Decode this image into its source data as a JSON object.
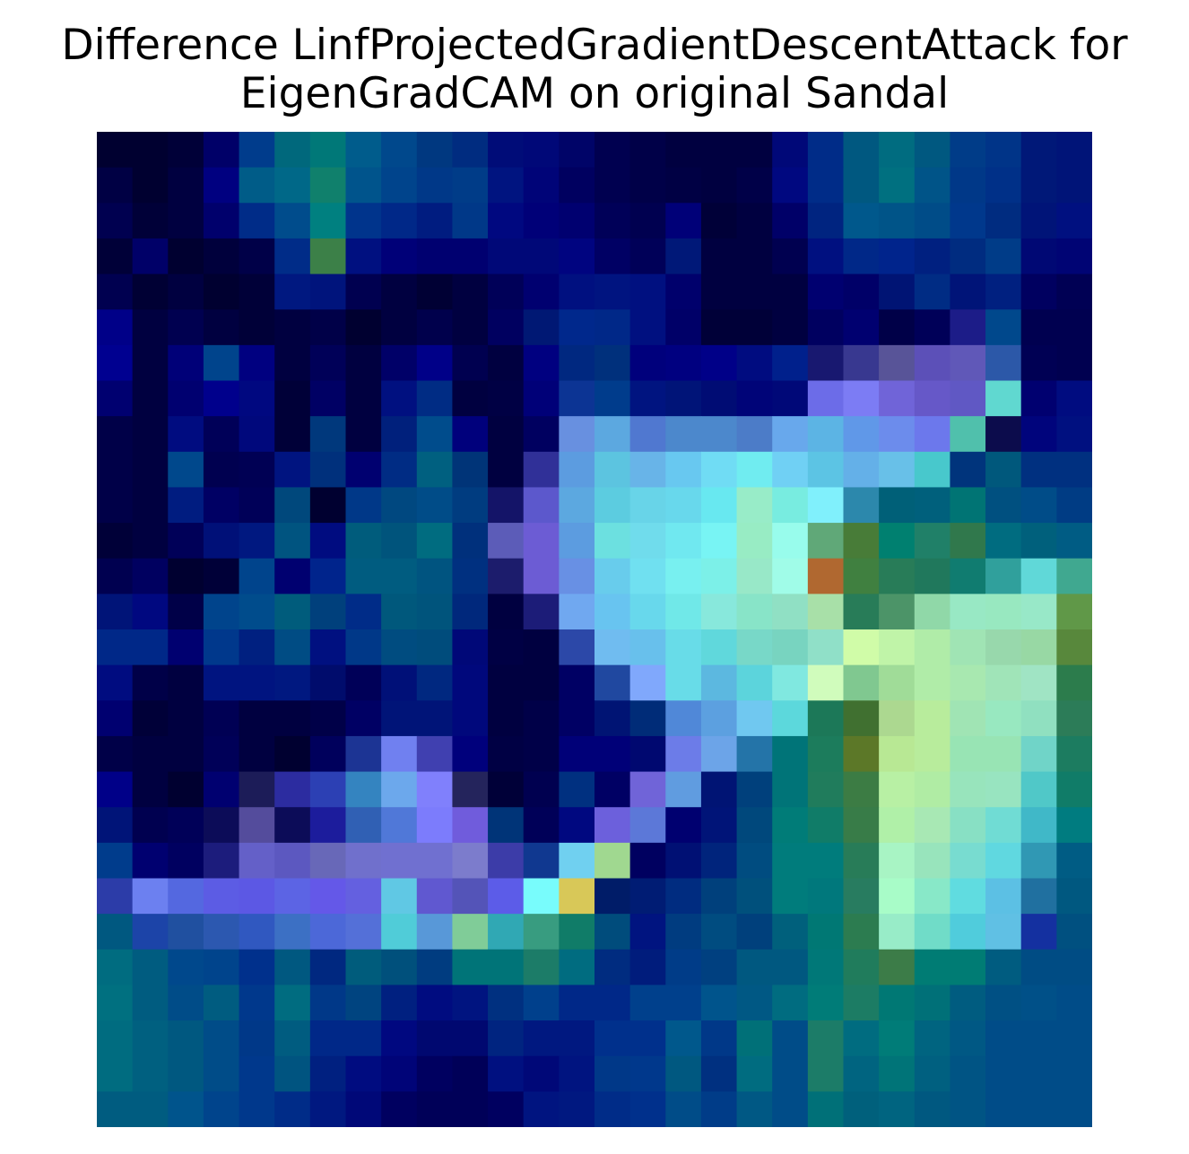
{
  "chart_data": {
    "type": "heatmap",
    "title_lines": [
      "Difference LinfProjectedGradientDescentAttack for",
      "EigenGradCAM on original Sandal"
    ],
    "rows": 28,
    "cols": 28,
    "axes": "off",
    "cells": [
      [
        "#000030",
        "#000030",
        "#000038",
        "#000068",
        "#003C8C",
        "#00687C",
        "#007878",
        "#005C8C",
        "#00488C",
        "#003880",
        "#002C80",
        "#000C78",
        "#000878",
        "#000468",
        "#000050",
        "#000048",
        "#000040",
        "#000040",
        "#000040",
        "#000878",
        "#002C88",
        "#005880",
        "#006C80",
        "#005880",
        "#003C88",
        "#003488",
        "#001878",
        "#001478"
      ],
      [
        "#000044",
        "#000030",
        "#000040",
        "#000080",
        "#005C88",
        "#006888",
        "#10806C",
        "#00548C",
        "#00448C",
        "#003888",
        "#003C88",
        "#001480",
        "#000478",
        "#000060",
        "#000050",
        "#000048",
        "#000044",
        "#000040",
        "#000048",
        "#000880",
        "#002C88",
        "#005880",
        "#007080",
        "#005488",
        "#003888",
        "#003088",
        "#001878",
        "#001478"
      ],
      [
        "#000050",
        "#000038",
        "#000040",
        "#00006C",
        "#002C88",
        "#004C8C",
        "#008080",
        "#00348C",
        "#002888",
        "#001C80",
        "#003888",
        "#000880",
        "#000078",
        "#000070",
        "#000058",
        "#000050",
        "#000078",
        "#000038",
        "#000040",
        "#000068",
        "#002480",
        "#00588C",
        "#005488",
        "#004C88",
        "#00388C",
        "#002C80",
        "#001478",
        "#001080"
      ],
      [
        "#000038",
        "#000068",
        "#000030",
        "#00003C",
        "#000048",
        "#002C88",
        "#3C8048",
        "#001080",
        "#000078",
        "#000070",
        "#000070",
        "#000878",
        "#000878",
        "#000480",
        "#000064",
        "#000058",
        "#001878",
        "#000040",
        "#000040",
        "#000050",
        "#001080",
        "#002888",
        "#00248C",
        "#002080",
        "#002C80",
        "#003C88",
        "#000874",
        "#000474"
      ],
      [
        "#000050",
        "#000034",
        "#000040",
        "#000030",
        "#000038",
        "#001880",
        "#00147C",
        "#000050",
        "#000040",
        "#000034",
        "#000040",
        "#000058",
        "#000070",
        "#001080",
        "#001480",
        "#001080",
        "#00006C",
        "#000040",
        "#000040",
        "#000040",
        "#000070",
        "#000068",
        "#001474",
        "#002C84",
        "#001478",
        "#002080",
        "#000060",
        "#000054"
      ],
      [
        "#000088",
        "#000040",
        "#000050",
        "#000040",
        "#000038",
        "#000040",
        "#000048",
        "#000030",
        "#000040",
        "#00004C",
        "#000040",
        "#000060",
        "#001874",
        "#00288C",
        "#002888",
        "#001080",
        "#000068",
        "#000038",
        "#000038",
        "#000040",
        "#000060",
        "#000070",
        "#000048",
        "#000058",
        "#1C1C88",
        "#00488C",
        "#000050",
        "#000050"
      ],
      [
        "#000090",
        "#000040",
        "#000078",
        "#00448C",
        "#000080",
        "#000040",
        "#000058",
        "#000040",
        "#000068",
        "#000088",
        "#000050",
        "#000040",
        "#000080",
        "#002880",
        "#00307C",
        "#00007C",
        "#000080",
        "#000088",
        "#000C80",
        "#00208C",
        "#181870",
        "#383890",
        "#585498",
        "#5C50B8",
        "#6058B8",
        "#2C58A8",
        "#000054",
        "#000050"
      ],
      [
        "#000070",
        "#000040",
        "#000070",
        "#00008C",
        "#000880",
        "#000038",
        "#000064",
        "#000040",
        "#001080",
        "#002C84",
        "#000040",
        "#000044",
        "#000078",
        "#0C3494",
        "#003C8C",
        "#001480",
        "#001478",
        "#000C74",
        "#000478",
        "#000878",
        "#6C6CE8",
        "#7C7CF4",
        "#7064D8",
        "#6658C8",
        "#6058C4",
        "#60D8D0",
        "#000070",
        "#000C80"
      ],
      [
        "#000048",
        "#000040",
        "#000C80",
        "#000058",
        "#00087C",
        "#000038",
        "#00387C",
        "#000040",
        "#00207C",
        "#004C8C",
        "#00007C",
        "#000040",
        "#000060",
        "#6890E0",
        "#5CA8E0",
        "#5078D0",
        "#4C88CC",
        "#4C88CC",
        "#4C7CC8",
        "#68A8EC",
        "#5CB4E4",
        "#6098E8",
        "#6C8CEC",
        "#6C78EC",
        "#50C0AC",
        "#0C0C4C",
        "#00047C",
        "#001080"
      ],
      [
        "#000048",
        "#000040",
        "#00488C",
        "#000050",
        "#000054",
        "#001480",
        "#00307C",
        "#000070",
        "#002C84",
        "#006080",
        "#003478",
        "#000040",
        "#303098",
        "#5C9CE0",
        "#5CC4E0",
        "#68B4E8",
        "#68C8F0",
        "#70DCF4",
        "#70ECF0",
        "#70D0F4",
        "#5CC4E4",
        "#64B0E8",
        "#68C0E8",
        "#48C8CC",
        "#00347C",
        "#00587C",
        "#003080",
        "#003080"
      ],
      [
        "#000048",
        "#000040",
        "#001C80",
        "#000064",
        "#000058",
        "#00487C",
        "#000030",
        "#003888",
        "#004880",
        "#004C88",
        "#003C80",
        "#141468",
        "#5C58CC",
        "#5CA8E0",
        "#5CCCE0",
        "#68D4E8",
        "#68D8EC",
        "#68E8F0",
        "#98ECC8",
        "#78ECE0",
        "#80F0FC",
        "#2C88AC",
        "#006078",
        "#00607C",
        "#007474",
        "#005080",
        "#004C88",
        "#003C84"
      ],
      [
        "#000038",
        "#000040",
        "#000058",
        "#001078",
        "#001880",
        "#005480",
        "#000C80",
        "#005C7C",
        "#00547C",
        "#006C80",
        "#00307C",
        "#5C5CB8",
        "#6C5CD4",
        "#5C9CE0",
        "#6CE0E0",
        "#70DCEC",
        "#70E8F0",
        "#78F4F4",
        "#98ECC4",
        "#98FCEC",
        "#60A878",
        "#487C38",
        "#008070",
        "#208068",
        "#30784C",
        "#006C80",
        "#00607C",
        "#005C84"
      ],
      [
        "#000050",
        "#000060",
        "#000030",
        "#000038",
        "#00448C",
        "#000070",
        "#00248C",
        "#005C80",
        "#005C80",
        "#005480",
        "#003080",
        "#1C1C6C",
        "#6C5CD4",
        "#6890E4",
        "#68CCEC",
        "#70E0F0",
        "#78F0F0",
        "#7CF0E8",
        "#98E8C8",
        "#A0FCE8",
        "#B06830",
        "#408040",
        "#287C58",
        "#20785C",
        "#107C70",
        "#30A09C",
        "#60D8D8",
        "#40A890"
      ],
      [
        "#001478",
        "#000880",
        "#000048",
        "#00448C",
        "#004C8C",
        "#005C7C",
        "#00407C",
        "#002C88",
        "#00587C",
        "#00547C",
        "#00287C",
        "#000040",
        "#1C1C78",
        "#70A8F0",
        "#68C4F0",
        "#68D8EC",
        "#70E8E8",
        "#88E8DC",
        "#88E4C8",
        "#90E0C4",
        "#A8E0A8",
        "#287C58",
        "#4C9468",
        "#90D8A8",
        "#98E8C4",
        "#98E8C0",
        "#98E8C8",
        "#609848"
      ],
      [
        "#002888",
        "#002888",
        "#000070",
        "#00388C",
        "#002080",
        "#004C84",
        "#001080",
        "#003888",
        "#004C80",
        "#004C7C",
        "#000878",
        "#000044",
        "#000040",
        "#2C48A8",
        "#70BCF0",
        "#68C0EC",
        "#68DCE8",
        "#60D8DC",
        "#78D8C8",
        "#78D4C0",
        "#90E0C8",
        "#D0FCA8",
        "#C0F4A8",
        "#B0ECA8",
        "#A0E4B4",
        "#98D8AC",
        "#98D8A4",
        "#58883C"
      ],
      [
        "#000C80",
        "#000048",
        "#000040",
        "#001480",
        "#001480",
        "#001880",
        "#000C6C",
        "#000058",
        "#001078",
        "#002880",
        "#00087C",
        "#000040",
        "#000040",
        "#000064",
        "#2048A0",
        "#80A8FC",
        "#68DCE8",
        "#5CB8E0",
        "#5CD4DC",
        "#80E8E0",
        "#D0FCBC",
        "#80C890",
        "#A0DC98",
        "#B0ECA8",
        "#A8E8B0",
        "#A0E4B8",
        "#A0E4C4",
        "#2C7C4C"
      ],
      [
        "#000070",
        "#000038",
        "#000040",
        "#000054",
        "#000040",
        "#000040",
        "#000048",
        "#000064",
        "#001478",
        "#001478",
        "#00087C",
        "#000040",
        "#000048",
        "#000064",
        "#001474",
        "#002C78",
        "#5088D8",
        "#5CA0E0",
        "#70C8F0",
        "#5CD8DC",
        "#1C7858",
        "#407030",
        "#ACD890",
        "#B8EC9C",
        "#A0E4B4",
        "#98E8C0",
        "#90E0C0",
        "#2C7C58"
      ],
      [
        "#000048",
        "#000040",
        "#000040",
        "#000058",
        "#000040",
        "#000030",
        "#00005C",
        "#1C3494",
        "#7080F0",
        "#4040B0",
        "#00007C",
        "#000044",
        "#000048",
        "#000078",
        "#000078",
        "#000870",
        "#6C7CE8",
        "#6CA4E8",
        "#2474A8",
        "#007478",
        "#1C7C5C",
        "#5C7828",
        "#B8E894",
        "#B8EC9C",
        "#98E4B4",
        "#98E4B4",
        "#70D4C8",
        "#1C7C60"
      ],
      [
        "#000088",
        "#000040",
        "#000030",
        "#000070",
        "#1C1C58",
        "#2C2CA0",
        "#2C40B4",
        "#3484C0",
        "#6CA8EC",
        "#8080FC",
        "#24245C",
        "#000038",
        "#000050",
        "#003080",
        "#000064",
        "#7064D8",
        "#609CE0",
        "#001474",
        "#00407C",
        "#007478",
        "#207C5C",
        "#3C7C44",
        "#B8F0A4",
        "#B0ECA4",
        "#98E4BC",
        "#98E4C0",
        "#50C8C8",
        "#107C68"
      ],
      [
        "#001478",
        "#000050",
        "#000058",
        "#0C0C58",
        "#544C9C",
        "#0C0C58",
        "#1C1C9C",
        "#3060B4",
        "#5078D8",
        "#7C7CFC",
        "#705CDC",
        "#003478",
        "#000058",
        "#000880",
        "#6C60DC",
        "#5C78D8",
        "#000070",
        "#001478",
        "#00487C",
        "#007C78",
        "#107C68",
        "#387C48",
        "#B0F0A8",
        "#A8E8B4",
        "#88E0C4",
        "#70DCD4",
        "#40B8C8",
        "#007C80"
      ],
      [
        "#003C8C",
        "#000070",
        "#000060",
        "#1C1C7C",
        "#6460C8",
        "#5C58C0",
        "#6868B8",
        "#7070CC",
        "#7070D0",
        "#7070D0",
        "#7C7CCC",
        "#3C3CA8",
        "#103890",
        "#70D0F0",
        "#A0D890",
        "#000060",
        "#001074",
        "#00247C",
        "#004C80",
        "#007C7C",
        "#007C7C",
        "#287C58",
        "#A8F4C4",
        "#98E4BC",
        "#78DCD0",
        "#60D8E0",
        "#3098B4",
        "#005C84"
      ],
      [
        "#2C3CA8",
        "#6C80F0",
        "#5468E0",
        "#5C5CE4",
        "#5C58E4",
        "#5C64E4",
        "#6458E8",
        "#6460E0",
        "#60C8E4",
        "#6058D0",
        "#5454B8",
        "#5C5CE8",
        "#78FCFC",
        "#D8C858",
        "#001C68",
        "#001C74",
        "#002C80",
        "#00407C",
        "#00507C",
        "#007C7C",
        "#00787C",
        "#287C60",
        "#A8FCC8",
        "#88E8C8",
        "#60DCE0",
        "#5CC0E4",
        "#2070A0",
        "#005880"
      ],
      [
        "#005880",
        "#1C44A8",
        "#2050A0",
        "#2C58B0",
        "#3058C0",
        "#3C70C4",
        "#4C68D8",
        "#5470D8",
        "#50CCD8",
        "#5898D8",
        "#80CC98",
        "#30A8B4",
        "#389C80",
        "#107C68",
        "#004C7C",
        "#001480",
        "#003C80",
        "#004C80",
        "#00407C",
        "#00607C",
        "#007874",
        "#2C7C50",
        "#98ECC8",
        "#70DCC8",
        "#50CCDC",
        "#60C0E4",
        "#1430A0",
        "#005080"
      ],
      [
        "#006C80",
        "#005C80",
        "#00488C",
        "#00448C",
        "#00308C",
        "#005880",
        "#002880",
        "#005C7C",
        "#00507C",
        "#003C80",
        "#007478",
        "#007478",
        "#1C7C68",
        "#006C80",
        "#002C80",
        "#001C7C",
        "#003C88",
        "#004080",
        "#005880",
        "#005880",
        "#007878",
        "#207C5C",
        "#3C7C48",
        "#007C74",
        "#007C74",
        "#005C80",
        "#004C84",
        "#004C84"
      ],
      [
        "#007080",
        "#005C80",
        "#004C88",
        "#005C80",
        "#00388C",
        "#006C80",
        "#003888",
        "#004480",
        "#002080",
        "#000C80",
        "#001480",
        "#003080",
        "#00408C",
        "#002888",
        "#002888",
        "#00408C",
        "#00408C",
        "#00548C",
        "#005884",
        "#006C80",
        "#007C78",
        "#1C7C64",
        "#007874",
        "#007078",
        "#005C80",
        "#005084",
        "#005088",
        "#004C88"
      ],
      [
        "#006C80",
        "#006080",
        "#005880",
        "#004C88",
        "#003888",
        "#005C80",
        "#002888",
        "#002888",
        "#000880",
        "#000870",
        "#000870",
        "#002480",
        "#001880",
        "#001880",
        "#00308C",
        "#00308C",
        "#00588C",
        "#003888",
        "#007078",
        "#004C88",
        "#1C7C68",
        "#006C80",
        "#007C78",
        "#006480",
        "#005884",
        "#004C88",
        "#004C88",
        "#004C88"
      ],
      [
        "#006C80",
        "#006080",
        "#005880",
        "#004C88",
        "#00388C",
        "#005480",
        "#002080",
        "#000C80",
        "#000478",
        "#000060",
        "#000058",
        "#001080",
        "#000878",
        "#001480",
        "#003888",
        "#00388C",
        "#005880",
        "#003080",
        "#006C80",
        "#004C88",
        "#1C7C68",
        "#006480",
        "#007478",
        "#006080",
        "#005484",
        "#004C88",
        "#004C88",
        "#004C88"
      ],
      [
        "#005C80",
        "#005C80",
        "#00548C",
        "#00448C",
        "#00388C",
        "#002C88",
        "#001880",
        "#000878",
        "#000060",
        "#000058",
        "#000058",
        "#000060",
        "#001480",
        "#001880",
        "#002C88",
        "#00308C",
        "#004C88",
        "#003C88",
        "#005884",
        "#004C88",
        "#007078",
        "#00607C",
        "#006480",
        "#005880",
        "#005484",
        "#004C88",
        "#004C88",
        "#004C88"
      ]
    ]
  }
}
